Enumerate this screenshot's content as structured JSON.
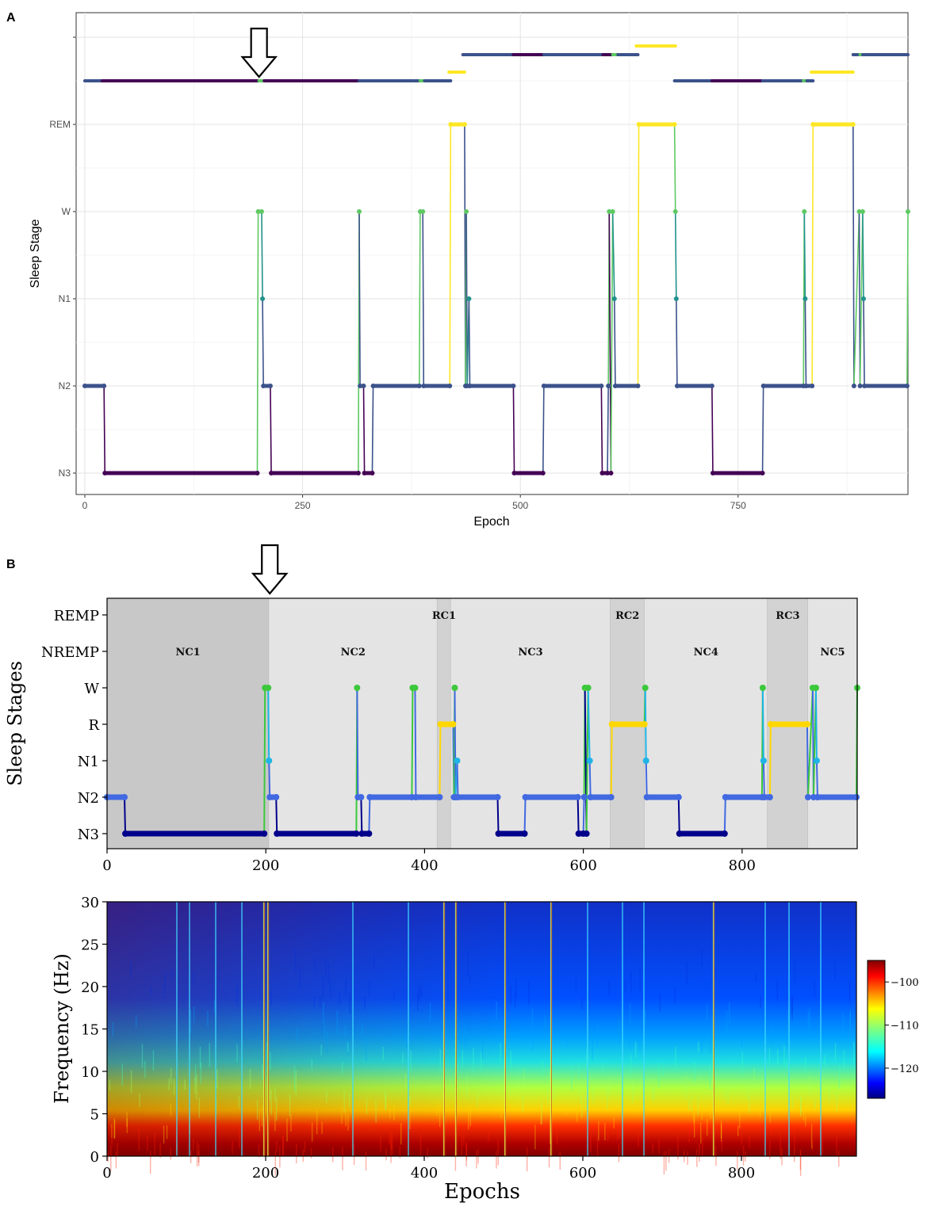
{
  "panels": {
    "a_label": "A",
    "b_label": "B"
  },
  "colors": {
    "viridis_dark": "#440154",
    "viridis_blue": "#3b528b",
    "viridis_teal": "#21918c",
    "viridis_green": "#5ec962",
    "viridis_yellow": "#fde725",
    "b_n3": "#00008b",
    "b_n2": "#4169e1",
    "b_n1": "#1eb4e6",
    "b_w": "#3cc83c",
    "b_r": "#ffd700",
    "b_nrem_shade": "#d2d2d2",
    "b_rem_shade": "#e6e6e6"
  },
  "chart_data": [
    {
      "id": "A",
      "type": "line",
      "xlabel": "Epoch",
      "ylabel": "Sleep Stage",
      "xlim": [
        -10,
        945
      ],
      "xticks": [
        0,
        250,
        500,
        750
      ],
      "ytick_labels": [
        "N3",
        "N2",
        "N1",
        "W",
        "REM",
        ""
      ],
      "ylevels": {
        "N3": 0,
        "N2": 1,
        "N1": 2,
        "W": 3,
        "REM": 4
      },
      "hypnogram": [
        [
          0,
          "N2"
        ],
        [
          22,
          "N2"
        ],
        [
          23,
          "N3"
        ],
        [
          198,
          "N3"
        ],
        [
          199,
          "W"
        ],
        [
          203,
          "W"
        ],
        [
          204,
          "N1"
        ],
        [
          205,
          "N2"
        ],
        [
          213,
          "N2"
        ],
        [
          214,
          "N3"
        ],
        [
          314,
          "N3"
        ],
        [
          315,
          "W"
        ],
        [
          316,
          "N2"
        ],
        [
          320,
          "N2"
        ],
        [
          321,
          "N3"
        ],
        [
          330,
          "N3"
        ],
        [
          331,
          "N2"
        ],
        [
          384,
          "N2"
        ],
        [
          385,
          "W"
        ],
        [
          388,
          "W"
        ],
        [
          389,
          "N2"
        ],
        [
          419,
          "N2"
        ],
        [
          420,
          "REM"
        ],
        [
          436,
          "REM"
        ],
        [
          437,
          "N2"
        ],
        [
          438,
          "W"
        ],
        [
          439,
          "N2"
        ],
        [
          441,
          "N1"
        ],
        [
          442,
          "N2"
        ],
        [
          492,
          "N2"
        ],
        [
          493,
          "N3"
        ],
        [
          526,
          "N3"
        ],
        [
          527,
          "N2"
        ],
        [
          593,
          "N2"
        ],
        [
          594,
          "N3"
        ],
        [
          600,
          "N3"
        ],
        [
          601,
          "N2"
        ],
        [
          602,
          "W"
        ],
        [
          604,
          "N3"
        ],
        [
          606,
          "W"
        ],
        [
          608,
          "N1"
        ],
        [
          609,
          "N2"
        ],
        [
          635,
          "N2"
        ],
        [
          636,
          "REM"
        ],
        [
          677,
          "REM"
        ],
        [
          678,
          "W"
        ],
        [
          679,
          "N1"
        ],
        [
          680,
          "N2"
        ],
        [
          720,
          "N2"
        ],
        [
          721,
          "N3"
        ],
        [
          778,
          "N3"
        ],
        [
          779,
          "N2"
        ],
        [
          825,
          "N2"
        ],
        [
          826,
          "W"
        ],
        [
          827,
          "N1"
        ],
        [
          828,
          "N2"
        ],
        [
          835,
          "N2"
        ],
        [
          836,
          "REM"
        ],
        [
          882,
          "REM"
        ],
        [
          883,
          "N2"
        ],
        [
          889,
          "W"
        ],
        [
          890,
          "N2"
        ],
        [
          893,
          "W"
        ],
        [
          894,
          "N1"
        ],
        [
          895,
          "N2"
        ],
        [
          944,
          "N2"
        ],
        [
          945,
          "W"
        ]
      ],
      "cycle_rows": [
        {
          "row": 4.5,
          "segments": [
            [
              0,
              20,
              "viridis_blue"
            ],
            [
              20,
              200,
              "viridis_dark"
            ],
            [
              200,
              206,
              "viridis_green"
            ],
            [
              206,
              315,
              "viridis_dark"
            ],
            [
              315,
              330,
              "viridis_blue"
            ],
            [
              330,
              385,
              "viridis_blue"
            ],
            [
              385,
              390,
              "viridis_green"
            ],
            [
              390,
              420,
              "viridis_blue"
            ]
          ]
        },
        {
          "row": 4.6,
          "segments": [
            [
              418,
              436,
              "viridis_yellow"
            ]
          ]
        },
        {
          "row": 4.8,
          "segments": [
            [
              434,
              492,
              "viridis_blue"
            ],
            [
              492,
              527,
              "viridis_dark"
            ],
            [
              527,
              595,
              "viridis_blue"
            ],
            [
              595,
              606,
              "viridis_dark"
            ],
            [
              606,
              612,
              "viridis_green"
            ],
            [
              612,
              635,
              "viridis_blue"
            ]
          ]
        },
        {
          "row": 4.9,
          "segments": [
            [
              633,
              678,
              "viridis_yellow"
            ]
          ]
        },
        {
          "row": 4.5,
          "segments": [
            [
              677,
              720,
              "viridis_blue"
            ],
            [
              720,
              778,
              "viridis_dark"
            ],
            [
              778,
              825,
              "viridis_blue"
            ],
            [
              825,
              829,
              "viridis_green"
            ],
            [
              829,
              836,
              "viridis_blue"
            ]
          ]
        },
        {
          "row": 4.6,
          "segments": [
            [
              834,
              882,
              "viridis_yellow"
            ]
          ]
        },
        {
          "row": 4.8,
          "segments": [
            [
              882,
              890,
              "viridis_blue"
            ],
            [
              890,
              893,
              "viridis_green"
            ],
            [
              893,
              945,
              "viridis_blue"
            ]
          ]
        }
      ],
      "arrow_epoch": 200
    },
    {
      "id": "B-hypnogram",
      "type": "line",
      "ylabel": "Sleep Stages",
      "xlim": [
        0,
        945
      ],
      "xticks": [
        0,
        200,
        400,
        600,
        800
      ],
      "ytick_labels": [
        "N3",
        "N2",
        "N1",
        "R",
        "W",
        "NREMP",
        "REMP"
      ],
      "cycles": [
        {
          "label": "NC1",
          "start": 0,
          "end": 204,
          "kind": "nrem_dark"
        },
        {
          "label": "NC2",
          "start": 204,
          "end": 416,
          "kind": "light"
        },
        {
          "label": "RC1",
          "start": 416,
          "end": 433,
          "kind": "rem"
        },
        {
          "label": "NC3",
          "start": 433,
          "end": 634,
          "kind": "light"
        },
        {
          "label": "RC2",
          "start": 634,
          "end": 677,
          "kind": "rem"
        },
        {
          "label": "NC4",
          "start": 677,
          "end": 832,
          "kind": "light"
        },
        {
          "label": "RC3",
          "start": 832,
          "end": 883,
          "kind": "rem"
        },
        {
          "label": "NC5",
          "start": 883,
          "end": 945,
          "kind": "light"
        }
      ],
      "arrow_epoch": 205
    },
    {
      "id": "B-spectrogram",
      "type": "heatmap",
      "xlabel": "Epochs",
      "ylabel": "Frequency (Hz)",
      "xlim": [
        0,
        945
      ],
      "ylim": [
        0,
        30
      ],
      "xticks": [
        0,
        200,
        400,
        600,
        800
      ],
      "yticks": [
        0,
        5,
        10,
        15,
        20,
        25,
        30
      ],
      "colorbar": {
        "range": [
          -127,
          -95
        ],
        "ticks": [
          -100,
          -110,
          -120
        ],
        "tick_labels": [
          "−100",
          "−110",
          "−120"
        ],
        "colormap": "jet"
      },
      "artifact_epochs": [
        88,
        104,
        137,
        170,
        198,
        203,
        310,
        380,
        425,
        440,
        502,
        560,
        606,
        650,
        677,
        765,
        830,
        860,
        900
      ]
    }
  ]
}
